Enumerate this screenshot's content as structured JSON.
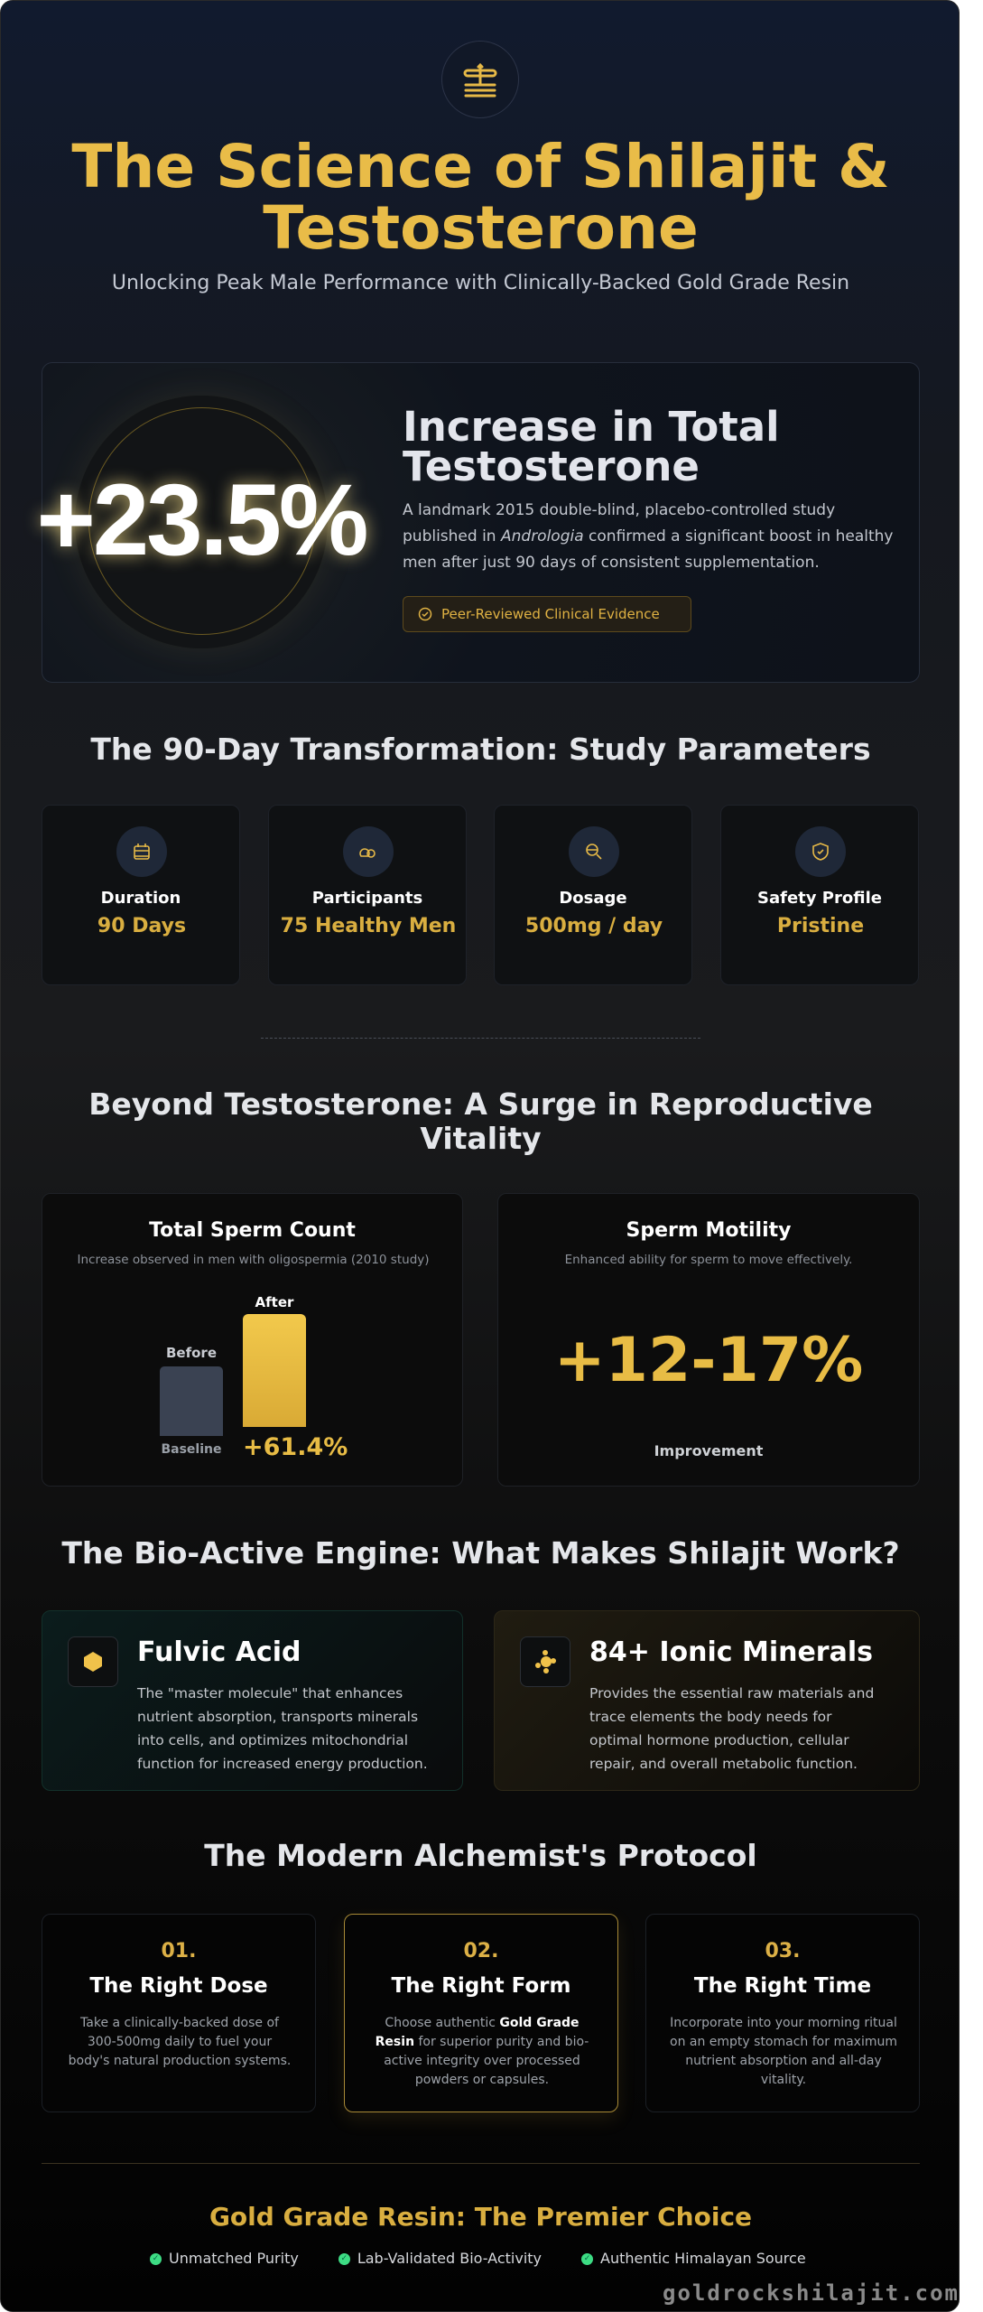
{
  "header": {
    "logo_icon": "scales-icon",
    "title": "The Science of Shilajit & Testosterone",
    "subtitle": "Unlocking Peak Male Performance with Clinically-Backed Gold Grade Resin"
  },
  "hero": {
    "stat": "+23.5%",
    "heading": "Increase in Total Testosterone",
    "para_before": "A landmark 2015 double-blind, placebo-controlled study published in ",
    "para_journal": "Andrologia",
    "para_after": " confirmed a significant boost in healthy men after just 90 days of consistent supplementation.",
    "badge": "Peer-Reviewed Clinical Evidence",
    "badge_icon": "check-circle-icon"
  },
  "params": {
    "heading": "The 90-Day Transformation: Study Parameters",
    "items": [
      {
        "icon": "calendar-icon",
        "label": "Duration",
        "value": "90 Days"
      },
      {
        "icon": "users-icon",
        "label": "Participants",
        "value": "75 Healthy Men"
      },
      {
        "icon": "search-icon",
        "label": "Dosage",
        "value": "500mg / day"
      },
      {
        "icon": "shield-check-icon",
        "label": "Safety Profile",
        "value": "Pristine"
      }
    ]
  },
  "vitality": {
    "heading": "Beyond Testosterone: A Surge in Reproductive Vitality",
    "count": {
      "title": "Total Sperm Count",
      "subtitle": "Increase observed in men with oligospermia (2010 study)",
      "before_label": "Before",
      "after_label": "After",
      "baseline_label": "Baseline",
      "increase": "+61.4%",
      "before_value": 100,
      "after_value": 161.4
    },
    "motility": {
      "title": "Sperm Motility",
      "subtitle": "Enhanced ability for sperm to move effectively.",
      "value": "+12-17%",
      "caption": "Improvement"
    }
  },
  "engine": {
    "heading": "The Bio-Active Engine: What Makes Shilajit Work?",
    "items": [
      {
        "icon": "hexagon-icon",
        "title": "Fulvic Acid",
        "desc": "The \"master molecule\" that enhances nutrient absorption, transports minerals into cells, and optimizes mitochondrial function for increased energy production."
      },
      {
        "icon": "atom-icon",
        "title": "84+ Ionic Minerals",
        "desc": "Provides the essential raw materials and trace elements the body needs for optimal hormone production, cellular repair, and overall metabolic function."
      }
    ]
  },
  "protocol": {
    "heading": "The Modern Alchemist's Protocol",
    "steps": [
      {
        "num": "01.",
        "title": "The Right Dose",
        "desc": "Take a clinically-backed dose of 300-500mg daily to fuel your body's natural production systems."
      },
      {
        "num": "02.",
        "title": "The Right Form",
        "desc_a": "Choose authentic ",
        "desc_bold": "Gold Grade Resin",
        "desc_b": " for superior purity and bio-active integrity over processed powders or capsules."
      },
      {
        "num": "03.",
        "title": "The Right Time",
        "desc": "Incorporate into your morning ritual on an empty stomach for maximum nutrient absorption and all-day vitality."
      }
    ]
  },
  "footer": {
    "heading": "Gold Grade Resin: The Premier Choice",
    "checks": [
      "Unmatched Purity",
      "Lab-Validated Bio-Activity",
      "Authentic Himalayan Source"
    ],
    "watermark": "goldrockshilajit.com"
  },
  "colors": {
    "gold": "#e6b947",
    "accent_green": "#3ddc84",
    "bar_before": "#3a4252"
  }
}
